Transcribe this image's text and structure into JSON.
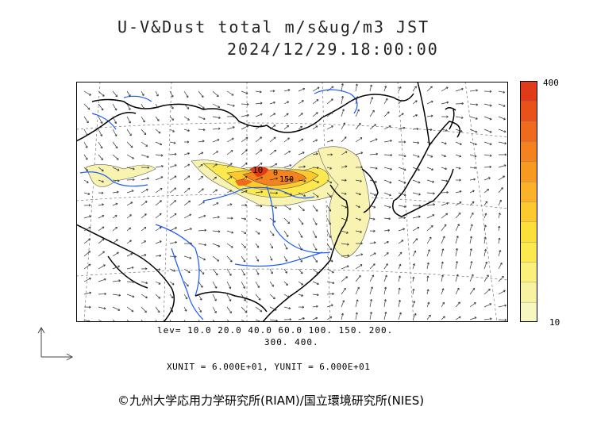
{
  "header": {
    "title_line1": "U-V&Dust total m/s&ug/m3 JST",
    "title_line2": "2024/12/29.18:00:00"
  },
  "colorbar": {
    "max_label": "400",
    "min_label": "10",
    "colors": [
      "#f7f7c0",
      "#f8f3a0",
      "#fbf07a",
      "#fbe94f",
      "#fce03a",
      "#fcc92e",
      "#fbb128",
      "#f89a22",
      "#f4821f",
      "#ef6a1c",
      "#e8511a",
      "#e03a18"
    ]
  },
  "levels": {
    "line1": "lev= 10.0 20.0 40.0 60.0 100. 150. 200.",
    "line2": "300. 400."
  },
  "units": "XUNIT = 6.000E+01, YUNIT = 6.000E+01",
  "copyright": "©九州大学応用力学研究所(RIAM)/国立環境研究所(NIES)",
  "map_labels": {
    "contour_a": "10",
    "contour_b": "0",
    "contour_c": "150"
  },
  "colors": {
    "coastline": "#000000",
    "rivers": "#1a5bff",
    "arrows": "#333333",
    "grid": "#777777"
  }
}
